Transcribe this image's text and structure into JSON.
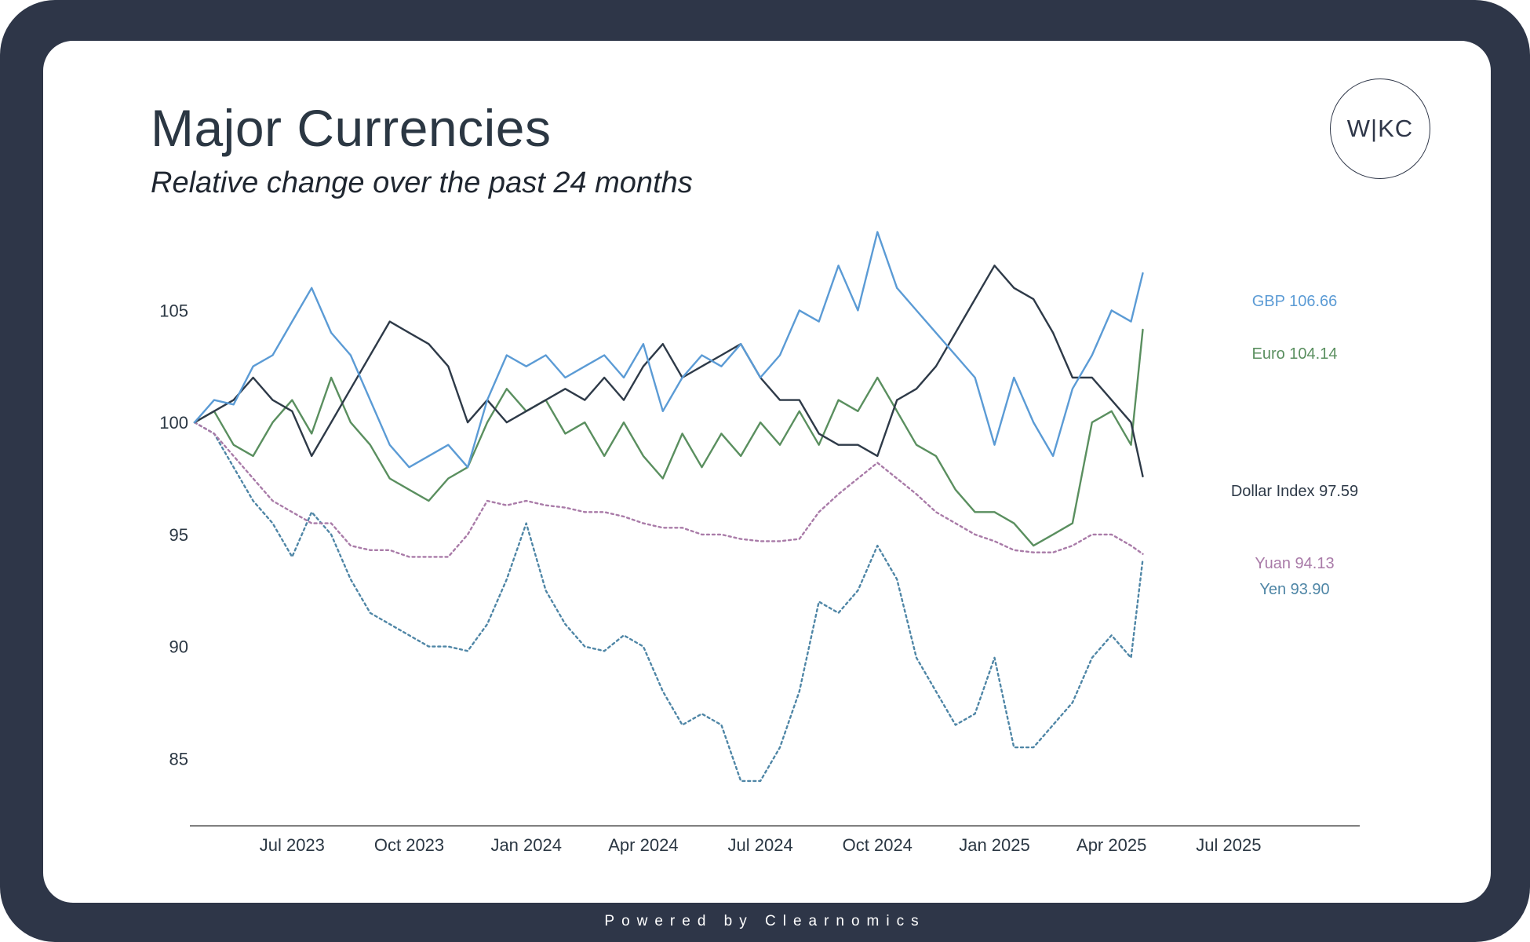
{
  "header": {
    "title": "Major Currencies",
    "subtitle": "Relative change over the past 24 months",
    "logo_text": "W|KC"
  },
  "footer": {
    "text": "Powered by Clearnomics"
  },
  "chart_data": {
    "type": "line",
    "title": "Major Currencies",
    "subtitle": "Relative change over the past 24 months",
    "xlabel": "",
    "ylabel": "",
    "x_range": [
      0,
      26
    ],
    "ylim": [
      82,
      107.5
    ],
    "grid": false,
    "x_ticks": [
      {
        "value": 2.5,
        "label": "Jul 2023"
      },
      {
        "value": 5.5,
        "label": "Oct 2023"
      },
      {
        "value": 8.5,
        "label": "Jan 2024"
      },
      {
        "value": 11.5,
        "label": "Apr 2024"
      },
      {
        "value": 14.5,
        "label": "Jul 2024"
      },
      {
        "value": 17.5,
        "label": "Oct 2024"
      },
      {
        "value": 20.5,
        "label": "Jan 2025"
      },
      {
        "value": 23.5,
        "label": "Apr 2025"
      },
      {
        "value": 26.5,
        "label": "Jul 2025"
      }
    ],
    "y_ticks": [
      {
        "value": 105,
        "label": "105"
      },
      {
        "value": 100,
        "label": "100"
      },
      {
        "value": 95,
        "label": "95"
      },
      {
        "value": 90,
        "label": "90"
      },
      {
        "value": 85,
        "label": "85"
      }
    ],
    "x": [
      0,
      0.5,
      1,
      1.5,
      2,
      2.5,
      3,
      3.5,
      4,
      4.5,
      5,
      5.5,
      6,
      6.5,
      7,
      7.5,
      8,
      8.5,
      9,
      9.5,
      10,
      10.5,
      11,
      11.5,
      12,
      12.5,
      13,
      13.5,
      14,
      14.5,
      15,
      15.5,
      16,
      16.5,
      17,
      17.5,
      18,
      18.5,
      19,
      19.5,
      20,
      20.5,
      21,
      21.5,
      22,
      22.5,
      23,
      23.5,
      24,
      24.3
    ],
    "series": [
      {
        "name": "GBP",
        "end_label": "GBP 106.66",
        "color": "#5b9bd5",
        "dashed": false,
        "values": [
          100,
          101,
          100.8,
          102.5,
          103,
          104.5,
          106,
          104,
          103,
          101,
          99,
          98,
          98.5,
          99,
          98,
          101,
          103,
          102.5,
          103,
          102,
          102.5,
          103,
          102,
          103.5,
          100.5,
          102,
          103,
          102.5,
          103.5,
          102,
          103,
          105,
          104.5,
          107,
          105,
          108.5,
          106,
          105,
          104,
          103,
          102,
          99,
          102,
          100,
          98.5,
          101.5,
          103,
          105,
          104.5,
          106.66
        ]
      },
      {
        "name": "Euro",
        "end_label": "Euro 104.14",
        "color": "#5a8f5f",
        "dashed": false,
        "values": [
          100,
          100.5,
          99,
          98.5,
          100,
          101,
          99.5,
          102,
          100,
          99,
          97.5,
          97,
          96.5,
          97.5,
          98,
          100,
          101.5,
          100.5,
          101,
          99.5,
          100,
          98.5,
          100,
          98.5,
          97.5,
          99.5,
          98,
          99.5,
          98.5,
          100,
          99,
          100.5,
          99,
          101,
          100.5,
          102,
          100.5,
          99,
          98.5,
          97,
          96,
          96,
          95.5,
          94.5,
          95,
          95.5,
          100,
          100.5,
          99,
          104.14
        ]
      },
      {
        "name": "Dollar Index",
        "end_label": "Dollar Index 97.59",
        "color": "#2e3a48",
        "dashed": false,
        "values": [
          100,
          100.5,
          101,
          102,
          101,
          100.5,
          98.5,
          100,
          101.5,
          103,
          104.5,
          104,
          103.5,
          102.5,
          100,
          101,
          100,
          100.5,
          101,
          101.5,
          101,
          102,
          101,
          102.5,
          103.5,
          102,
          102.5,
          103,
          103.5,
          102,
          101,
          101,
          99.5,
          99,
          99,
          98.5,
          101,
          101.5,
          102.5,
          104,
          105.5,
          107,
          106,
          105.5,
          104,
          102,
          102,
          101,
          100,
          97.59
        ]
      },
      {
        "name": "Yuan",
        "end_label": "Yuan 94.13",
        "color": "#a97ba8",
        "dashed": true,
        "values": [
          100,
          99.5,
          98.5,
          97.5,
          96.5,
          96,
          95.5,
          95.5,
          94.5,
          94.3,
          94.3,
          94,
          94,
          94,
          95,
          96.5,
          96.3,
          96.5,
          96.3,
          96.2,
          96,
          96,
          95.8,
          95.5,
          95.3,
          95.3,
          95,
          95,
          94.8,
          94.7,
          94.7,
          94.8,
          96,
          96.8,
          97.5,
          98.2,
          97.5,
          96.8,
          96,
          95.5,
          95,
          94.7,
          94.3,
          94.2,
          94.2,
          94.5,
          95,
          95,
          94.5,
          94.13
        ]
      },
      {
        "name": "Yen",
        "end_label": "Yen 93.90",
        "color": "#4f86a6",
        "dashed": true,
        "values": [
          100,
          99.5,
          98,
          96.5,
          95.5,
          94,
          96,
          95,
          93,
          91.5,
          91,
          90.5,
          90,
          90,
          89.8,
          91,
          93,
          95.5,
          92.5,
          91,
          90,
          89.8,
          90.5,
          90,
          88,
          86.5,
          87,
          86.5,
          84,
          84,
          85.5,
          88,
          92,
          91.5,
          92.5,
          94.5,
          93,
          89.5,
          88,
          86.5,
          87,
          89.5,
          85.5,
          85.5,
          86.5,
          87.5,
          89.5,
          90.5,
          89.5,
          93.9
        ]
      }
    ]
  }
}
